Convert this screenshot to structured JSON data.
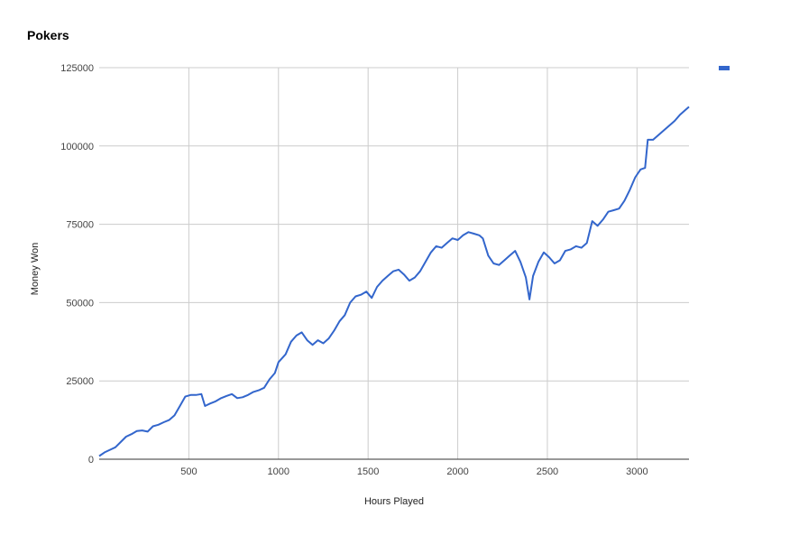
{
  "chart_data": {
    "type": "line",
    "title": "Pokers",
    "xlabel": "Hours Played",
    "ylabel": "Money Won",
    "xlim": [
      0,
      3290
    ],
    "ylim": [
      0,
      125000
    ],
    "x_ticks": [
      500,
      1000,
      1500,
      2000,
      2500,
      3000
    ],
    "x_tick_labels": [
      "500",
      "1000",
      "1500",
      "2000",
      "2500",
      "3000"
    ],
    "y_ticks": [
      0,
      25000,
      50000,
      75000,
      100000,
      125000
    ],
    "y_tick_labels": [
      "0",
      "25000",
      "50000",
      "75000",
      "100000",
      "125000"
    ],
    "grid": true,
    "legend": {
      "position": "top-right",
      "entries": [
        ""
      ]
    },
    "colors": {
      "line": "#3366cc",
      "grid": "#cccccc",
      "axis": "#333333"
    },
    "series": [
      {
        "values": [
          [
            0,
            1000
          ],
          [
            30,
            2200
          ],
          [
            60,
            3000
          ],
          [
            90,
            3800
          ],
          [
            120,
            5500
          ],
          [
            150,
            7200
          ],
          [
            180,
            8000
          ],
          [
            210,
            9000
          ],
          [
            240,
            9200
          ],
          [
            270,
            8800
          ],
          [
            300,
            10500
          ],
          [
            330,
            11000
          ],
          [
            360,
            11800
          ],
          [
            390,
            12500
          ],
          [
            420,
            14000
          ],
          [
            450,
            17000
          ],
          [
            480,
            20000
          ],
          [
            510,
            20500
          ],
          [
            540,
            20500
          ],
          [
            570,
            20800
          ],
          [
            590,
            17000
          ],
          [
            620,
            17800
          ],
          [
            650,
            18500
          ],
          [
            680,
            19500
          ],
          [
            710,
            20200
          ],
          [
            740,
            20800
          ],
          [
            770,
            19500
          ],
          [
            800,
            19800
          ],
          [
            830,
            20500
          ],
          [
            860,
            21500
          ],
          [
            890,
            22000
          ],
          [
            920,
            22800
          ],
          [
            950,
            25500
          ],
          [
            980,
            27500
          ],
          [
            1000,
            31000
          ],
          [
            1040,
            33500
          ],
          [
            1070,
            37500
          ],
          [
            1100,
            39500
          ],
          [
            1130,
            40500
          ],
          [
            1160,
            38000
          ],
          [
            1190,
            36500
          ],
          [
            1220,
            38000
          ],
          [
            1250,
            37000
          ],
          [
            1280,
            38500
          ],
          [
            1310,
            41000
          ],
          [
            1340,
            44000
          ],
          [
            1370,
            46000
          ],
          [
            1400,
            50000
          ],
          [
            1430,
            52000
          ],
          [
            1460,
            52500
          ],
          [
            1490,
            53500
          ],
          [
            1520,
            51500
          ],
          [
            1550,
            55000
          ],
          [
            1580,
            57000
          ],
          [
            1610,
            58500
          ],
          [
            1640,
            60000
          ],
          [
            1670,
            60500
          ],
          [
            1700,
            59000
          ],
          [
            1730,
            57000
          ],
          [
            1760,
            58000
          ],
          [
            1790,
            60000
          ],
          [
            1820,
            63000
          ],
          [
            1850,
            66000
          ],
          [
            1880,
            68000
          ],
          [
            1910,
            67500
          ],
          [
            1940,
            69000
          ],
          [
            1970,
            70500
          ],
          [
            2000,
            70000
          ],
          [
            2030,
            71500
          ],
          [
            2060,
            72500
          ],
          [
            2090,
            72000
          ],
          [
            2120,
            71500
          ],
          [
            2140,
            70500
          ],
          [
            2170,
            65000
          ],
          [
            2200,
            62500
          ],
          [
            2230,
            62000
          ],
          [
            2260,
            63500
          ],
          [
            2290,
            65000
          ],
          [
            2320,
            66500
          ],
          [
            2350,
            63000
          ],
          [
            2380,
            58000
          ],
          [
            2400,
            51000
          ],
          [
            2420,
            58500
          ],
          [
            2450,
            63000
          ],
          [
            2480,
            66000
          ],
          [
            2510,
            64500
          ],
          [
            2540,
            62500
          ],
          [
            2570,
            63500
          ],
          [
            2600,
            66500
          ],
          [
            2630,
            67000
          ],
          [
            2660,
            68000
          ],
          [
            2690,
            67500
          ],
          [
            2720,
            69000
          ],
          [
            2750,
            76000
          ],
          [
            2780,
            74500
          ],
          [
            2810,
            76500
          ],
          [
            2840,
            79000
          ],
          [
            2870,
            79500
          ],
          [
            2900,
            80000
          ],
          [
            2930,
            82500
          ],
          [
            2960,
            86000
          ],
          [
            2990,
            90000
          ],
          [
            3020,
            92500
          ],
          [
            3045,
            93000
          ],
          [
            3060,
            102000
          ],
          [
            3090,
            102000
          ],
          [
            3120,
            103500
          ],
          [
            3150,
            105000
          ],
          [
            3180,
            106500
          ],
          [
            3210,
            108000
          ],
          [
            3240,
            110000
          ],
          [
            3270,
            111500
          ],
          [
            3290,
            112500
          ]
        ]
      }
    ]
  }
}
